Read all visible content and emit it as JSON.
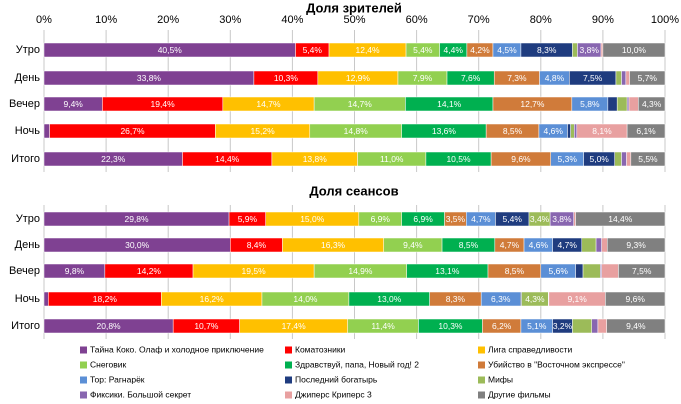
{
  "chart_data": [
    {
      "type": "bar",
      "title": "Доля зрителей",
      "categories": [
        "Утро",
        "День",
        "Вечер",
        "Ночь",
        "Итого"
      ],
      "xlim": [
        0,
        100
      ],
      "xticks": [
        {
          "value": 0,
          "label": "0%"
        },
        {
          "value": 10,
          "label": "10%"
        },
        {
          "value": 20,
          "label": "20%"
        },
        {
          "value": 30,
          "label": "30%"
        },
        {
          "value": 40,
          "label": "40%"
        },
        {
          "value": 50,
          "label": "50%"
        },
        {
          "value": 60,
          "label": "60%"
        },
        {
          "value": 70,
          "label": "70%"
        },
        {
          "value": 80,
          "label": "80%"
        },
        {
          "value": 90,
          "label": "90%"
        },
        {
          "value": 100,
          "label": "100%"
        }
      ],
      "grid": true,
      "series": [
        {
          "name": "Тайна Коко. Олаф и холодное приключение",
          "color": "#7f4192",
          "values": [
            40.5,
            33.8,
            9.4,
            0.9,
            22.3
          ],
          "value_labels": [
            "40,5%",
            "33,8%",
            "9,4%",
            null,
            "22,3%"
          ]
        },
        {
          "name": "Коматозники",
          "color": "#ff0000",
          "values": [
            5.4,
            10.3,
            19.4,
            26.7,
            14.4
          ],
          "value_labels": [
            "5,4%",
            "10,3%",
            "19,4%",
            "26,7%",
            "14,4%"
          ]
        },
        {
          "name": "Лига справедливости",
          "color": "#ffc000",
          "values": [
            12.4,
            12.9,
            14.7,
            15.2,
            13.8
          ],
          "value_labels": [
            "12,4%",
            "12,9%",
            "14,7%",
            "15,2%",
            "13,8%"
          ]
        },
        {
          "name": "Снеговик",
          "color": "#92d050",
          "values": [
            5.4,
            7.9,
            14.7,
            14.8,
            11.0
          ],
          "value_labels": [
            "5,4%",
            "7,9%",
            "14,7%",
            "14,8%",
            "11,0%"
          ]
        },
        {
          "name": "Здравствуй, папа, Новый год! 2",
          "color": "#00b050",
          "values": [
            4.4,
            7.6,
            14.1,
            13.6,
            10.5
          ],
          "value_labels": [
            "4,4%",
            "7,6%",
            "14,1%",
            "13,6%",
            "10,5%"
          ]
        },
        {
          "name": "Убийство в \"Восточном экспрессе\"",
          "color": "#d07b3a",
          "values": [
            4.2,
            7.3,
            12.7,
            8.5,
            9.6
          ],
          "value_labels": [
            "4,2%",
            "7,3%",
            "12,7%",
            "8,5%",
            "9,6%"
          ]
        },
        {
          "name": "Тор: Рагнарёк",
          "color": "#5b8fd6",
          "values": [
            4.5,
            4.8,
            5.8,
            4.6,
            5.3
          ],
          "value_labels": [
            "4,5%",
            "4,8%",
            "5,8%",
            "4,6%",
            "5,3%"
          ]
        },
        {
          "name": "Последний богатырь",
          "color": "#1f3c7f",
          "values": [
            8.3,
            7.5,
            1.5,
            0.5,
            5.0
          ],
          "value_labels": [
            "8,3%",
            "7,5%",
            null,
            null,
            "5,0%"
          ]
        },
        {
          "name": "Мифы",
          "color": "#9cbb59",
          "values": [
            0.8,
            0.9,
            1.6,
            0.6,
            1.1
          ],
          "value_labels": [
            null,
            null,
            null,
            null,
            null
          ]
        },
        {
          "name": "Фиксики. Большой секрет",
          "color": "#8866b0",
          "values": [
            3.8,
            0.7,
            0.3,
            0.4,
            0.8
          ],
          "value_labels": [
            "3,8%",
            null,
            null,
            null,
            null
          ]
        },
        {
          "name": "Джиперс Криперс 3",
          "color": "#e8a0a0",
          "values": [
            0.3,
            0.6,
            1.5,
            8.1,
            0.7
          ],
          "value_labels": [
            null,
            null,
            null,
            "8,1%",
            null
          ]
        },
        {
          "name": "Другие фильмы",
          "color": "#808080",
          "values": [
            10.0,
            5.7,
            4.3,
            6.1,
            5.5
          ],
          "value_labels": [
            "10,0%",
            "5,7%",
            "4,3%",
            "6,1%",
            "5,5%"
          ]
        }
      ]
    },
    {
      "type": "bar",
      "title": "Доля сеансов",
      "categories": [
        "Утро",
        "День",
        "Вечер",
        "Ночь",
        "Итого"
      ],
      "xlim": [
        0,
        100
      ],
      "xticks": [
        0,
        10,
        20,
        30,
        40,
        50,
        60,
        70,
        80,
        90,
        100
      ],
      "grid": true,
      "series": [
        {
          "values": [
            29.8,
            30.0,
            9.8,
            0.7,
            20.8
          ],
          "value_labels": [
            "29,8%",
            "30,0%",
            "9,8%",
            null,
            "20,8%"
          ]
        },
        {
          "values": [
            5.9,
            8.4,
            14.2,
            18.2,
            10.7
          ],
          "value_labels": [
            "5,9%",
            "8,4%",
            "14,2%",
            "18,2%",
            "10,7%"
          ]
        },
        {
          "values": [
            15.0,
            16.3,
            19.5,
            16.2,
            17.4
          ],
          "value_labels": [
            "15,0%",
            "16,3%",
            "19,5%",
            "16,2%",
            "17,4%"
          ]
        },
        {
          "values": [
            6.9,
            9.4,
            14.9,
            14.0,
            11.4
          ],
          "value_labels": [
            "6,9%",
            "9,4%",
            "14,9%",
            "14,0%",
            "11,4%"
          ]
        },
        {
          "values": [
            6.9,
            8.5,
            13.1,
            13.0,
            10.3
          ],
          "value_labels": [
            "6,9%",
            "8,5%",
            "13,1%",
            "13,0%",
            "10,3%"
          ]
        },
        {
          "values": [
            3.5,
            4.7,
            8.5,
            8.3,
            6.2
          ],
          "value_labels": [
            "3,5%",
            "4,7%",
            "8,5%",
            "8,3%",
            "6,2%"
          ]
        },
        {
          "values": [
            4.7,
            4.6,
            5.6,
            6.3,
            5.1
          ],
          "value_labels": [
            "4,7%",
            "4,6%",
            "5,6%",
            "6,3%",
            "5,1%"
          ]
        },
        {
          "values": [
            5.4,
            4.7,
            1.2,
            0.2,
            3.2
          ],
          "value_labels": [
            "5,4%",
            "4,7%",
            null,
            null,
            "3,2%"
          ]
        },
        {
          "values": [
            3.4,
            2.3,
            2.8,
            4.3,
            3.1
          ],
          "value_labels": [
            "3,4%",
            null,
            null,
            "4,3%",
            null
          ]
        },
        {
          "values": [
            3.8,
            0.9,
            0.2,
            0.1,
            1.0
          ],
          "value_labels": [
            "3,8%",
            null,
            null,
            null,
            null
          ]
        },
        {
          "values": [
            0.3,
            0.9,
            2.7,
            9.1,
            1.4
          ],
          "value_labels": [
            null,
            null,
            null,
            "9,1%",
            null
          ]
        },
        {
          "values": [
            14.4,
            9.3,
            7.5,
            9.6,
            9.4
          ],
          "value_labels": [
            "14,4%",
            "9,3%",
            "7,5%",
            "9,6%",
            "9,4%"
          ]
        }
      ]
    }
  ]
}
